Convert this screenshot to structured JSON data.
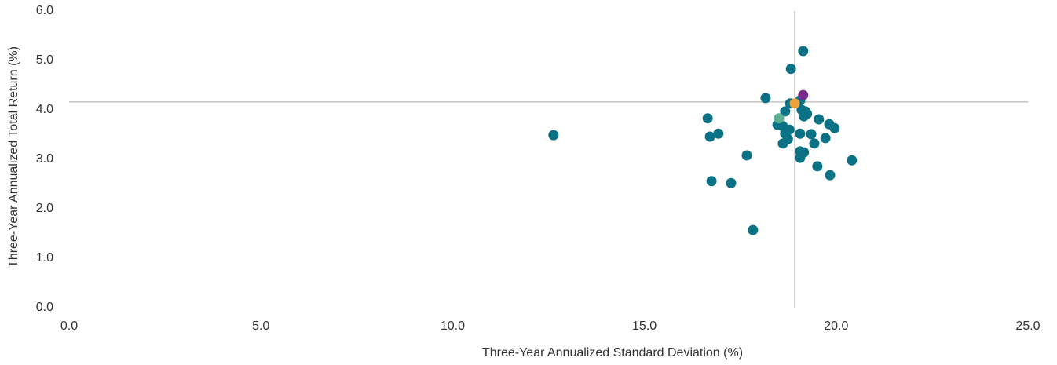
{
  "chart_data": {
    "type": "scatter",
    "x_label": "Three-Year Annualized Standard Deviation (%)",
    "y_label": "Three-Year Annualized Total Return (%)",
    "xlim": [
      0,
      25
    ],
    "xticks": [
      {
        "value": 0,
        "label": "0.0"
      },
      {
        "value": 5,
        "label": "5.0"
      },
      {
        "value": 10,
        "label": "10.0"
      },
      {
        "value": 15,
        "label": "15.0"
      },
      {
        "value": 20,
        "label": "20.0"
      },
      {
        "value": 25,
        "label": "25.0"
      }
    ],
    "ylim": [
      0,
      6
    ],
    "yticks": [
      {
        "value": 0,
        "label": "0.0"
      },
      {
        "value": 1,
        "label": "1.0"
      },
      {
        "value": 2,
        "label": "2.0"
      },
      {
        "value": 3,
        "label": "3.0"
      },
      {
        "value": 4,
        "label": "4.0"
      },
      {
        "value": 5,
        "label": "5.0"
      },
      {
        "value": 6,
        "label": "6.0"
      }
    ],
    "reference_lines": {
      "x": 18.92,
      "y": 4.16,
      "color": "#a6a6a6"
    },
    "series": [
      {
        "color": "#0b7285",
        "x": [
          12.63,
          19.14,
          18.82,
          18.16,
          19.06,
          18.8,
          18.67,
          19.1,
          19.24,
          19.2,
          19.16,
          16.65,
          19.55,
          19.82,
          19.96,
          18.47,
          18.61,
          18.78,
          19.06,
          19.35,
          18.67,
          16.93,
          16.71,
          18.74,
          19.72,
          19.43,
          18.61,
          19.06,
          19.16,
          19.06,
          17.67,
          20.41,
          19.51,
          19.84,
          16.75,
          17.26,
          17.83
        ],
        "values": [
          3.49,
          5.19,
          4.83,
          4.24,
          4.19,
          4.13,
          3.97,
          4.0,
          3.92,
          3.97,
          3.87,
          3.83,
          3.81,
          3.71,
          3.63,
          3.7,
          3.67,
          3.6,
          3.52,
          3.51,
          3.52,
          3.52,
          3.46,
          3.41,
          3.43,
          3.32,
          3.32,
          3.16,
          3.14,
          3.03,
          3.08,
          2.98,
          2.86,
          2.68,
          2.56,
          2.52,
          1.57
        ]
      },
      {
        "color": "#7b2d8e",
        "x": [
          19.14
        ],
        "values": [
          4.3
        ]
      },
      {
        "color": "#f0a23c",
        "x": [
          18.92
        ],
        "values": [
          4.13
        ]
      },
      {
        "color": "#5bb08f",
        "x": [
          18.51
        ],
        "values": [
          3.83
        ]
      }
    ]
  }
}
